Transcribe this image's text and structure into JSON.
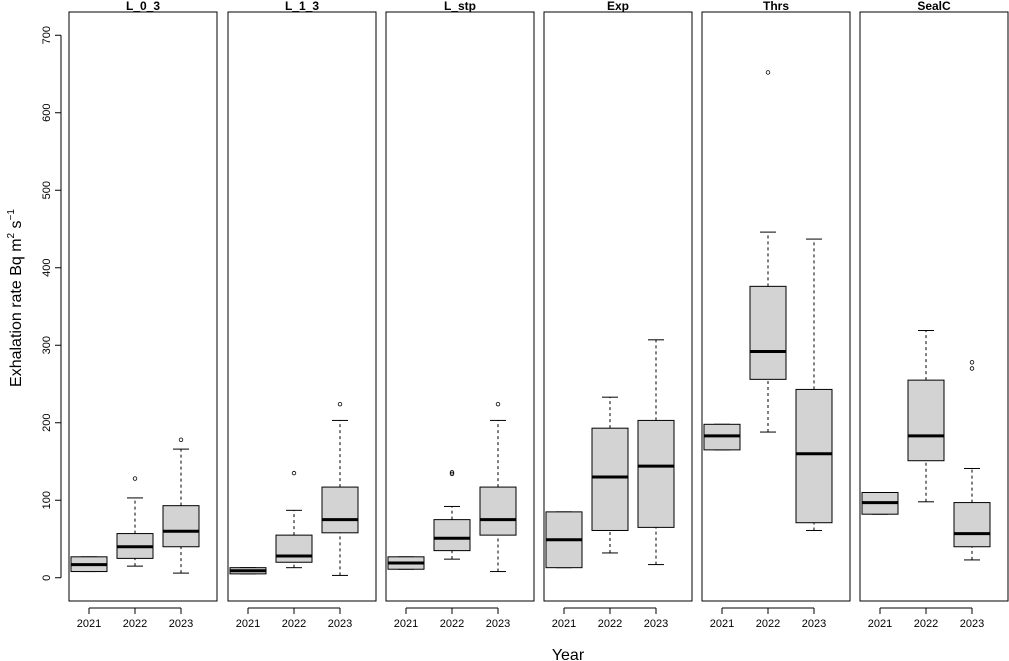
{
  "chart_data": {
    "type": "boxplot",
    "title": "",
    "xlabel": "Year",
    "ylabel": "Exhalation rate Bq m",
    "ylabel_sup1": "2",
    "ylabel_mid": " s",
    "ylabel_sup2": "−1",
    "ylim": [
      -30,
      730
    ],
    "y_ticks": [
      0,
      100,
      200,
      300,
      400,
      500,
      600,
      700
    ],
    "categories": [
      "2021",
      "2022",
      "2023"
    ],
    "panels": [
      {
        "name": "L_0_3",
        "boxes": [
          {
            "year": "2021",
            "whisker_low": 8,
            "q1": 8,
            "median": 17,
            "q3": 27,
            "whisker_high": 27,
            "outliers": []
          },
          {
            "year": "2022",
            "whisker_low": 15,
            "q1": 25,
            "median": 40,
            "q3": 57,
            "whisker_high": 103,
            "outliers": [
              128
            ]
          },
          {
            "year": "2023",
            "whisker_low": 6,
            "q1": 40,
            "median": 60,
            "q3": 93,
            "whisker_high": 166,
            "outliers": [
              178
            ]
          }
        ]
      },
      {
        "name": "L_1_3",
        "boxes": [
          {
            "year": "2021",
            "whisker_low": 5,
            "q1": 5,
            "median": 9,
            "q3": 13,
            "whisker_high": 13,
            "outliers": []
          },
          {
            "year": "2022",
            "whisker_low": 13,
            "q1": 20,
            "median": 28,
            "q3": 55,
            "whisker_high": 87,
            "outliers": [
              135
            ]
          },
          {
            "year": "2023",
            "whisker_low": 3,
            "q1": 58,
            "median": 75,
            "q3": 117,
            "whisker_high": 203,
            "outliers": [
              224
            ]
          }
        ]
      },
      {
        "name": "L_stp",
        "boxes": [
          {
            "year": "2021",
            "whisker_low": 11,
            "q1": 11,
            "median": 19,
            "q3": 27,
            "whisker_high": 27,
            "outliers": []
          },
          {
            "year": "2022",
            "whisker_low": 24,
            "q1": 35,
            "median": 51,
            "q3": 75,
            "whisker_high": 92,
            "outliers": [
              134,
              136
            ]
          },
          {
            "year": "2023",
            "whisker_low": 8,
            "q1": 55,
            "median": 75,
            "q3": 117,
            "whisker_high": 203,
            "outliers": [
              224
            ]
          }
        ]
      },
      {
        "name": "Exp",
        "boxes": [
          {
            "year": "2021",
            "whisker_low": 13,
            "q1": 13,
            "median": 49,
            "q3": 85,
            "whisker_high": 85,
            "outliers": []
          },
          {
            "year": "2022",
            "whisker_low": 32,
            "q1": 61,
            "median": 130,
            "q3": 193,
            "whisker_high": 233,
            "outliers": []
          },
          {
            "year": "2023",
            "whisker_low": 17,
            "q1": 65,
            "median": 144,
            "q3": 203,
            "whisker_high": 307,
            "outliers": []
          }
        ]
      },
      {
        "name": "Thrs",
        "boxes": [
          {
            "year": "2021",
            "whisker_low": 165,
            "q1": 165,
            "median": 183,
            "q3": 198,
            "whisker_high": 198,
            "outliers": []
          },
          {
            "year": "2022",
            "whisker_low": 188,
            "q1": 256,
            "median": 292,
            "q3": 376,
            "whisker_high": 446,
            "outliers": [
              652
            ]
          },
          {
            "year": "2023",
            "whisker_low": 61,
            "q1": 71,
            "median": 160,
            "q3": 243,
            "whisker_high": 437,
            "outliers": []
          }
        ]
      },
      {
        "name": "SealC",
        "boxes": [
          {
            "year": "2021",
            "whisker_low": 82,
            "q1": 82,
            "median": 97,
            "q3": 110,
            "whisker_high": 110,
            "outliers": []
          },
          {
            "year": "2022",
            "whisker_low": 98,
            "q1": 151,
            "median": 183,
            "q3": 255,
            "whisker_high": 319,
            "outliers": []
          },
          {
            "year": "2023",
            "whisker_low": 23,
            "q1": 40,
            "median": 57,
            "q3": 97,
            "whisker_high": 141,
            "outliers": [
              270,
              278
            ]
          }
        ]
      }
    ]
  },
  "colors": {
    "box_fill": "#d3d3d3",
    "stroke": "#000000",
    "background": "#ffffff"
  }
}
